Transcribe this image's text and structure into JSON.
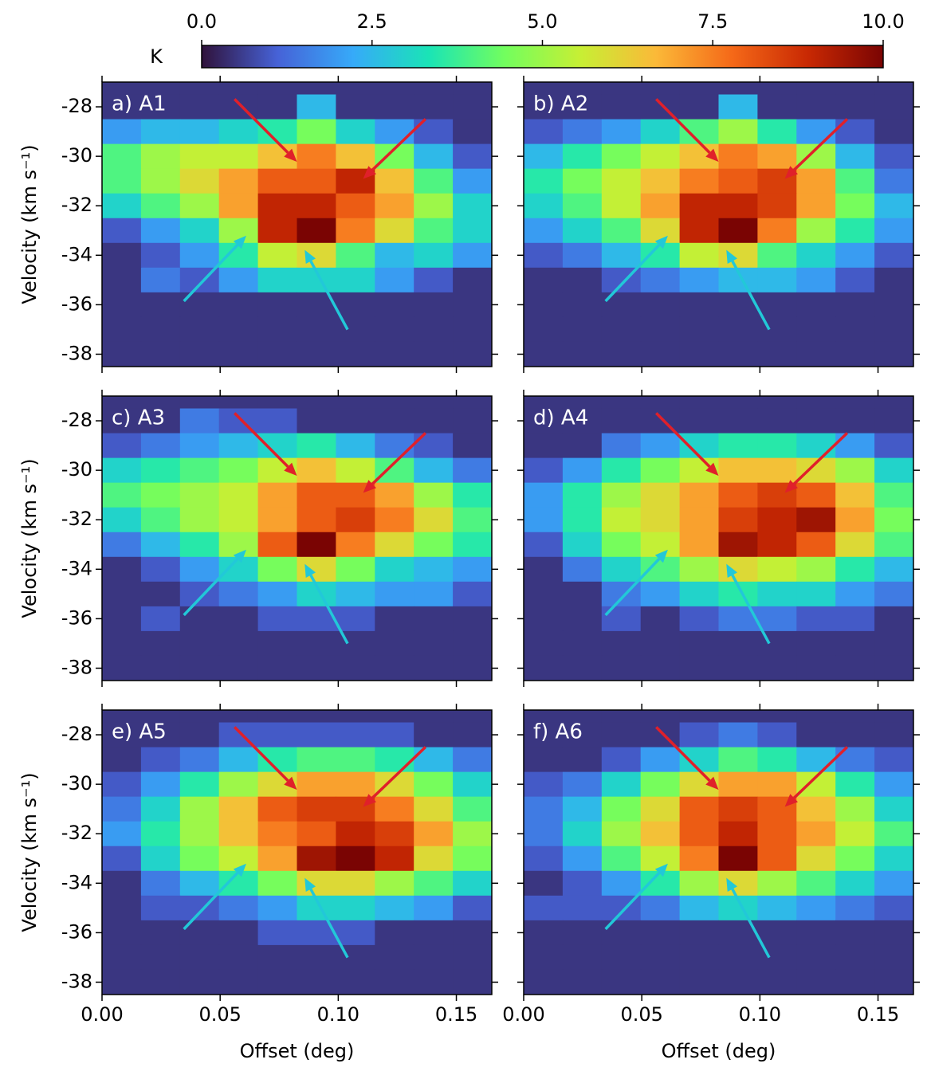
{
  "colorbar": {
    "label": "K",
    "lim": [
      0,
      10
    ],
    "ticks": [
      {
        "value": 0,
        "label": "0.0"
      },
      {
        "value": 2.5,
        "label": "2.5"
      },
      {
        "value": 5,
        "label": "5.0"
      },
      {
        "value": 7.5,
        "label": "7.5"
      },
      {
        "value": 10,
        "label": "10.0"
      }
    ],
    "colormap": [
      "#30123b",
      "#4662d7",
      "#36aaf9",
      "#1ae4b6",
      "#72fe5e",
      "#c7ef34",
      "#fbb938",
      "#f56918",
      "#c92903",
      "#7a0403"
    ]
  },
  "chart_data": [
    {
      "type": "heatmap",
      "title": "a) A1",
      "y_label": "Velocity (km s⁻¹)",
      "xlim": [
        0,
        0.165
      ],
      "ylim": [
        -38.5,
        -27
      ],
      "xticks": [
        {
          "value": 0,
          "label": "0.00"
        },
        {
          "value": 0.05,
          "label": "0.05"
        },
        {
          "value": 0.1,
          "label": "0.10"
        },
        {
          "value": 0.15,
          "label": "0.15"
        }
      ],
      "yticks": [
        -28,
        -30,
        -32,
        -34,
        -36,
        -38
      ],
      "xbins": [
        0,
        0.0165,
        0.033,
        0.0495,
        0.066,
        0.0825,
        0.099,
        0.1155,
        0.132,
        0.1485,
        0.165
      ],
      "ybins": [
        -26.5,
        -27.5,
        -28.5,
        -29.5,
        -30.5,
        -31.5,
        -32.5,
        -33.5,
        -34.5,
        -35.5,
        -36.5,
        -37.5,
        -38.5
      ],
      "values": [
        [
          0.5,
          0.5,
          0.5,
          0.5,
          0.5,
          0.5,
          0.5,
          0.5,
          0.5,
          0.5
        ],
        [
          0.5,
          0.5,
          0.5,
          0.5,
          0.5,
          2.5,
          0.5,
          0.5,
          0.5,
          0.5
        ],
        [
          2,
          2.5,
          2.5,
          3,
          3.5,
          4.5,
          3,
          2,
          1,
          0.5
        ],
        [
          4,
          5,
          5.5,
          5.5,
          6.5,
          7.5,
          6.5,
          4.5,
          2.5,
          1
        ],
        [
          4,
          5,
          6,
          7,
          8,
          8,
          9,
          6.5,
          4,
          2
        ],
        [
          3,
          4,
          5,
          7,
          9,
          9,
          8,
          7,
          5,
          3
        ],
        [
          1,
          2,
          3,
          5,
          9,
          10,
          7.5,
          6,
          4,
          3
        ],
        [
          0.5,
          1,
          2,
          3.5,
          5.5,
          6,
          4,
          2.5,
          3,
          2
        ],
        [
          0.5,
          1.5,
          1,
          2,
          3,
          3,
          3,
          2,
          1,
          0.5
        ],
        [
          0.5,
          0.5,
          0.5,
          0.5,
          0.5,
          0.5,
          0.5,
          0.5,
          0.5,
          0.5
        ],
        [
          0.5,
          0.5,
          0.5,
          0.5,
          0.5,
          0.5,
          0.5,
          0.5,
          0.5,
          0.5
        ],
        [
          0.5,
          0.5,
          0.5,
          0.5,
          0.5,
          0.5,
          0.5,
          0.5,
          0.5,
          0.5
        ]
      ]
    },
    {
      "type": "heatmap",
      "title": "b) A2",
      "xlim": [
        0,
        0.165
      ],
      "ylim": [
        -38.5,
        -27
      ],
      "xticks": [
        0,
        0.05,
        0.1,
        0.15
      ],
      "yticks": [
        -28,
        -30,
        -32,
        -34,
        -36,
        -38
      ],
      "xbins": [
        0,
        0.0165,
        0.033,
        0.0495,
        0.066,
        0.0825,
        0.099,
        0.1155,
        0.132,
        0.1485,
        0.165
      ],
      "ybins": [
        -26.5,
        -27.5,
        -28.5,
        -29.5,
        -30.5,
        -31.5,
        -32.5,
        -33.5,
        -34.5,
        -35.5,
        -36.5,
        -37.5,
        -38.5
      ],
      "values": [
        [
          0.5,
          0.5,
          0.5,
          0.5,
          0.5,
          0.5,
          0.5,
          0.5,
          0.5,
          0.5
        ],
        [
          0.5,
          0.5,
          0.5,
          0.5,
          0.5,
          2.5,
          0.5,
          0.5,
          0.5,
          0.5
        ],
        [
          1,
          1.5,
          2,
          3,
          4,
          5,
          3.5,
          2,
          1,
          0.5
        ],
        [
          2.5,
          3.5,
          4.5,
          5.5,
          6.5,
          7.5,
          7,
          5,
          2.5,
          1
        ],
        [
          3.5,
          4.5,
          5.5,
          6.5,
          7.5,
          8,
          8.5,
          7,
          4,
          1.5
        ],
        [
          3,
          4,
          5.5,
          7,
          9,
          9,
          8.5,
          7,
          4.5,
          2.5
        ],
        [
          2,
          3,
          4,
          6,
          9,
          10,
          7.5,
          5,
          3.5,
          2
        ],
        [
          1,
          1.5,
          2.5,
          3.5,
          5.5,
          6,
          4,
          3,
          2,
          1
        ],
        [
          0.5,
          0.5,
          1,
          1.5,
          2,
          2.5,
          2.5,
          2,
          1,
          0.5
        ],
        [
          0.5,
          0.5,
          0.5,
          0.5,
          0.5,
          0.5,
          0.5,
          0.5,
          0.5,
          0.5
        ],
        [
          0.5,
          0.5,
          0.5,
          0.5,
          0.5,
          0.5,
          0.5,
          0.5,
          0.5,
          0.5
        ],
        [
          0.5,
          0.5,
          0.5,
          0.5,
          0.5,
          0.5,
          0.5,
          0.5,
          0.5,
          0.5
        ]
      ]
    },
    {
      "type": "heatmap",
      "title": "c) A3",
      "y_label": "Velocity (km s⁻¹)",
      "xlim": [
        0,
        0.165
      ],
      "ylim": [
        -38.5,
        -27
      ],
      "xticks": [
        0,
        0.05,
        0.1,
        0.15
      ],
      "yticks": [
        -28,
        -30,
        -32,
        -34,
        -36,
        -38
      ],
      "xbins": [
        0,
        0.0165,
        0.033,
        0.0495,
        0.066,
        0.0825,
        0.099,
        0.1155,
        0.132,
        0.1485,
        0.165
      ],
      "ybins": [
        -26.5,
        -27.5,
        -28.5,
        -29.5,
        -30.5,
        -31.5,
        -32.5,
        -33.5,
        -34.5,
        -35.5,
        -36.5,
        -37.5,
        -38.5
      ],
      "values": [
        [
          0.5,
          0.5,
          0.5,
          0.5,
          0.5,
          0.5,
          0.5,
          0.5,
          0.5,
          0.5
        ],
        [
          0.5,
          0.5,
          1.5,
          1,
          1,
          0.5,
          0.5,
          0.5,
          0.5,
          0.5
        ],
        [
          1,
          1.5,
          2,
          2.5,
          3,
          3.5,
          2.5,
          1.5,
          1,
          0.5
        ],
        [
          3,
          3.5,
          4,
          4.5,
          5.5,
          6.5,
          5.5,
          4,
          2.5,
          1.5
        ],
        [
          4,
          4.5,
          5,
          5.5,
          7,
          8,
          8,
          7,
          5,
          3.5
        ],
        [
          3,
          4,
          5,
          5.5,
          7,
          8,
          8.5,
          7.5,
          6,
          4
        ],
        [
          1.5,
          2.5,
          3.5,
          5,
          8,
          10,
          7.5,
          6,
          4.5,
          3.5
        ],
        [
          0.5,
          1,
          2,
          3,
          4.5,
          6,
          4.5,
          3,
          2.5,
          2
        ],
        [
          0.5,
          0.5,
          1,
          1.5,
          2,
          3,
          2.5,
          2,
          2,
          1
        ],
        [
          0.5,
          1,
          0.5,
          0.5,
          1,
          1,
          1,
          0.5,
          0.5,
          0.5
        ],
        [
          0.5,
          0.5,
          0.5,
          0.5,
          0.5,
          0.5,
          0.5,
          0.5,
          0.5,
          0.5
        ],
        [
          0.5,
          0.5,
          0.5,
          0.5,
          0.5,
          0.5,
          0.5,
          0.5,
          0.5,
          0.5
        ]
      ]
    },
    {
      "type": "heatmap",
      "title": "d) A4",
      "xlim": [
        0,
        0.165
      ],
      "ylim": [
        -38.5,
        -27
      ],
      "xticks": [
        0,
        0.05,
        0.1,
        0.15
      ],
      "yticks": [
        -28,
        -30,
        -32,
        -34,
        -36,
        -38
      ],
      "xbins": [
        0,
        0.0165,
        0.033,
        0.0495,
        0.066,
        0.0825,
        0.099,
        0.1155,
        0.132,
        0.1485,
        0.165
      ],
      "ybins": [
        -26.5,
        -27.5,
        -28.5,
        -29.5,
        -30.5,
        -31.5,
        -32.5,
        -33.5,
        -34.5,
        -35.5,
        -36.5,
        -37.5,
        -38.5
      ],
      "values": [
        [
          0.5,
          0.5,
          0.5,
          0.5,
          0.5,
          0.5,
          0.5,
          0.5,
          0.5,
          0.5
        ],
        [
          0.5,
          0.5,
          0.5,
          0.5,
          0.5,
          0.5,
          0.5,
          0.5,
          0.5,
          0.5
        ],
        [
          0.5,
          0.5,
          1.5,
          2,
          3,
          3.5,
          3.5,
          3,
          2,
          1
        ],
        [
          1,
          2,
          3.5,
          4.5,
          5.5,
          6.5,
          6.5,
          6,
          5,
          3
        ],
        [
          2,
          3.5,
          5,
          6,
          7,
          8,
          8.5,
          8,
          6.5,
          4
        ],
        [
          2,
          3.5,
          5.5,
          6,
          7,
          8.5,
          9,
          9.5,
          7,
          4.5
        ],
        [
          1,
          3,
          4.5,
          5.5,
          7,
          9.5,
          9,
          8,
          6,
          4
        ],
        [
          0.5,
          1.5,
          3,
          4,
          5,
          6,
          5.5,
          5,
          3.5,
          2.5
        ],
        [
          0.5,
          0.5,
          1.5,
          2,
          3,
          3.5,
          3,
          3,
          2,
          1.5
        ],
        [
          0.5,
          0.5,
          1,
          0.5,
          1,
          1.5,
          1.5,
          1,
          1,
          0.5
        ],
        [
          0.5,
          0.5,
          0.5,
          0.5,
          0.5,
          0.5,
          0.5,
          0.5,
          0.5,
          0.5
        ],
        [
          0.5,
          0.5,
          0.5,
          0.5,
          0.5,
          0.5,
          0.5,
          0.5,
          0.5,
          0.5
        ]
      ]
    },
    {
      "type": "heatmap",
      "title": "e) A5",
      "y_label": "Velocity (km s⁻¹)",
      "x_label": "Offset (deg)",
      "xlim": [
        0,
        0.165
      ],
      "ylim": [
        -38.5,
        -27
      ],
      "xticks": [
        {
          "value": 0,
          "label": "0.00"
        },
        {
          "value": 0.05,
          "label": "0.05"
        },
        {
          "value": 0.1,
          "label": "0.10"
        },
        {
          "value": 0.15,
          "label": "0.15"
        }
      ],
      "yticks": [
        -28,
        -30,
        -32,
        -34,
        -36,
        -38
      ],
      "xbins": [
        0,
        0.0165,
        0.033,
        0.0495,
        0.066,
        0.0825,
        0.099,
        0.1155,
        0.132,
        0.1485,
        0.165
      ],
      "ybins": [
        -26.5,
        -27.5,
        -28.5,
        -29.5,
        -30.5,
        -31.5,
        -32.5,
        -33.5,
        -34.5,
        -35.5,
        -36.5,
        -37.5,
        -38.5
      ],
      "values": [
        [
          0.5,
          0.5,
          0.5,
          0.5,
          0.5,
          0.5,
          0.5,
          0.5,
          0.5,
          0.5
        ],
        [
          0.5,
          0.5,
          0.5,
          1,
          1,
          1,
          1,
          1,
          0.5,
          0.5
        ],
        [
          0.5,
          1,
          1.5,
          2.5,
          3.5,
          4,
          4,
          3.5,
          2.5,
          1.5
        ],
        [
          1,
          2,
          3.5,
          5,
          6,
          7,
          7,
          6,
          4.5,
          3
        ],
        [
          1.5,
          3,
          5,
          6.5,
          8,
          8.5,
          8.5,
          7.5,
          6,
          4
        ],
        [
          2,
          3.5,
          5,
          6.5,
          7.5,
          8,
          9,
          8.5,
          7,
          5
        ],
        [
          1,
          3,
          4.5,
          5.5,
          7,
          9.5,
          10,
          9,
          6,
          4.5
        ],
        [
          0.5,
          1.5,
          2.5,
          3.5,
          4.5,
          6,
          6,
          5,
          4,
          3
        ],
        [
          0.5,
          1,
          1,
          1.5,
          2,
          3,
          3,
          2.5,
          2,
          1
        ],
        [
          0.5,
          0.5,
          0.5,
          0.5,
          1,
          1,
          1,
          0.5,
          0.5,
          0.5
        ],
        [
          0.5,
          0.5,
          0.5,
          0.5,
          0.5,
          0.5,
          0.5,
          0.5,
          0.5,
          0.5
        ],
        [
          0.5,
          0.5,
          0.5,
          0.5,
          0.5,
          0.5,
          0.5,
          0.5,
          0.5,
          0.5
        ]
      ]
    },
    {
      "type": "heatmap",
      "title": "f) A6",
      "x_label": "Offset (deg)",
      "xlim": [
        0,
        0.165
      ],
      "ylim": [
        -38.5,
        -27
      ],
      "xticks": [
        {
          "value": 0,
          "label": "0.00"
        },
        {
          "value": 0.05,
          "label": "0.05"
        },
        {
          "value": 0.1,
          "label": "0.10"
        },
        {
          "value": 0.15,
          "label": "0.15"
        }
      ],
      "yticks": [
        -28,
        -30,
        -32,
        -34,
        -36,
        -38
      ],
      "xbins": [
        0,
        0.0165,
        0.033,
        0.0495,
        0.066,
        0.0825,
        0.099,
        0.1155,
        0.132,
        0.1485,
        0.165
      ],
      "ybins": [
        -26.5,
        -27.5,
        -28.5,
        -29.5,
        -30.5,
        -31.5,
        -32.5,
        -33.5,
        -34.5,
        -35.5,
        -36.5,
        -37.5,
        -38.5
      ],
      "values": [
        [
          0.5,
          0.5,
          0.5,
          0.5,
          0.5,
          0.5,
          0.5,
          0.5,
          0.5,
          0.5
        ],
        [
          0.5,
          0.5,
          0.5,
          0.5,
          1,
          1.5,
          1,
          0.5,
          0.5,
          0.5
        ],
        [
          0.5,
          0.5,
          1,
          2,
          3,
          4,
          3.5,
          2.5,
          1.5,
          1
        ],
        [
          1,
          1.5,
          3,
          4.5,
          6,
          7,
          7,
          5.5,
          3.5,
          2
        ],
        [
          1.5,
          2.5,
          4.5,
          6,
          8,
          8.5,
          8,
          6.5,
          5,
          3
        ],
        [
          1.5,
          3,
          5,
          6.5,
          8,
          9,
          8,
          7,
          5.5,
          4
        ],
        [
          1,
          2,
          4,
          5.5,
          7.5,
          10,
          8,
          6,
          4.5,
          3
        ],
        [
          0.5,
          1,
          2,
          3.5,
          5,
          6,
          5,
          4,
          3,
          2
        ],
        [
          1,
          1,
          1,
          1.5,
          2.5,
          3,
          2.5,
          2,
          1.5,
          1
        ],
        [
          0.5,
          0.5,
          0.5,
          0.5,
          0.5,
          0.5,
          0.5,
          0.5,
          0.5,
          0.5
        ],
        [
          0.5,
          0.5,
          0.5,
          0.5,
          0.5,
          0.5,
          0.5,
          0.5,
          0.5,
          0.5
        ],
        [
          0.5,
          0.5,
          0.5,
          0.5,
          0.5,
          0.5,
          0.5,
          0.5,
          0.5,
          0.5
        ]
      ]
    }
  ]
}
